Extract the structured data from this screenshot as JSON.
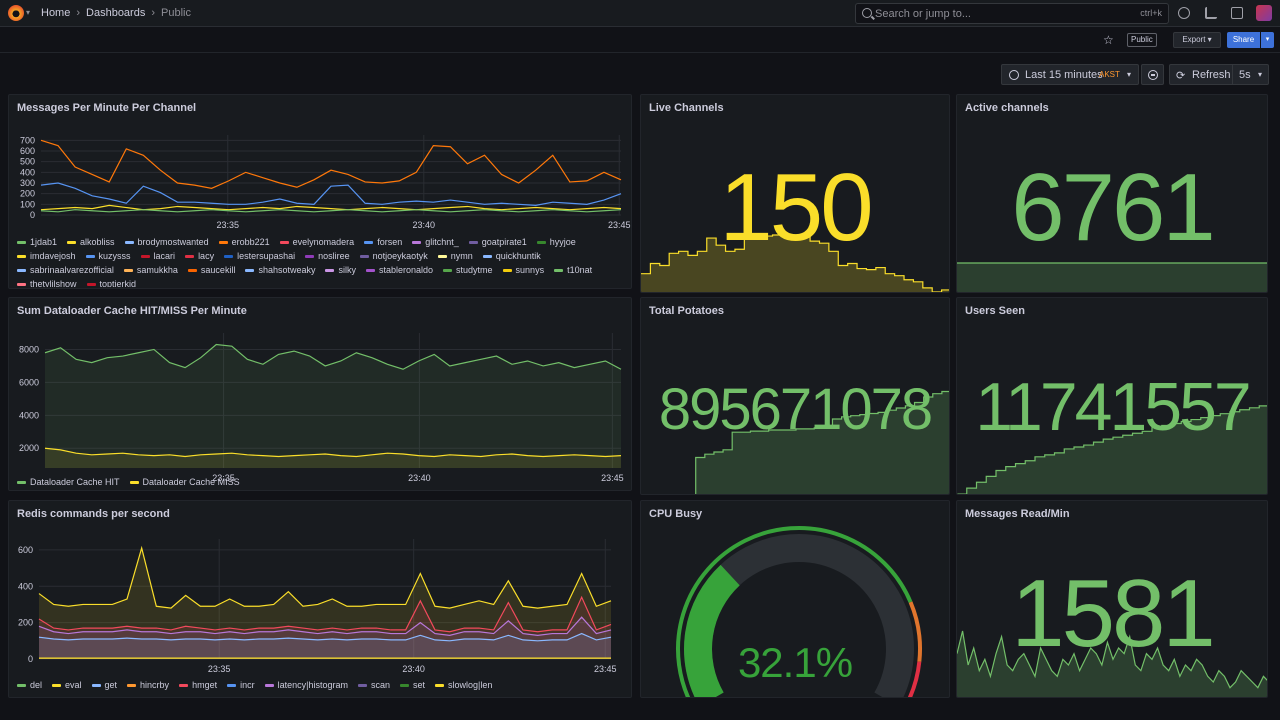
{
  "topbar": {
    "breadcrumbs": [
      "Home",
      "Dashboards",
      "Public"
    ],
    "search_placeholder": "Search or jump to...",
    "search_shortcut": "ctrl+k",
    "icons": [
      "grafana-logo",
      "help-icon",
      "news-icon",
      "kiosk-icon",
      "avatar"
    ]
  },
  "actions": {
    "star_icon": "star-icon",
    "public_tag": "Public",
    "export_label": "Export",
    "share_label": "Share"
  },
  "time": {
    "range_label": "Last 15 minutes",
    "timezone": "AKST",
    "refresh_label": "Refresh",
    "refresh_interval": "5s"
  },
  "colors": {
    "background": "#111217",
    "panel": "#181b1f",
    "green": "#73bf69",
    "yellow": "#fade2a",
    "blue": "#3d71d9",
    "orange": "#ff9830",
    "red": "#f2495c"
  },
  "panels": {
    "messages": {
      "title": "Messages Per Minute Per Channel",
      "legend": [
        {
          "name": "1jdab1",
          "color": "#73bf69"
        },
        {
          "name": "alkobliss",
          "color": "#fade2a"
        },
        {
          "name": "brodymostwanted",
          "color": "#8ab8ff"
        },
        {
          "name": "erobb221",
          "color": "#ff780a"
        },
        {
          "name": "evelynomadera",
          "color": "#f2495c"
        },
        {
          "name": "forsen",
          "color": "#5794f2"
        },
        {
          "name": "glitchnt_",
          "color": "#b877d9"
        },
        {
          "name": "goatpirate1",
          "color": "#705da0"
        },
        {
          "name": "hyyjoe",
          "color": "#37872d"
        },
        {
          "name": "imdavejosh",
          "color": "#fade2a"
        },
        {
          "name": "kuzysss",
          "color": "#5794f2"
        },
        {
          "name": "lacari",
          "color": "#c4162a"
        },
        {
          "name": "lacy",
          "color": "#e02f44"
        },
        {
          "name": "lestersupashai",
          "color": "#1f60c4"
        },
        {
          "name": "nosliree",
          "color": "#8f3bb8"
        },
        {
          "name": "notjoeykaotyk",
          "color": "#705da0"
        },
        {
          "name": "nymn",
          "color": "#fff899"
        },
        {
          "name": "quickhuntik",
          "color": "#8ab8ff"
        },
        {
          "name": "sabrinaalvarezofficial",
          "color": "#8ab8ff"
        },
        {
          "name": "samukkha",
          "color": "#ffb357"
        },
        {
          "name": "saucekill",
          "color": "#fa6400"
        },
        {
          "name": "shahsotweaky",
          "color": "#8ab8ff"
        },
        {
          "name": "silky",
          "color": "#ca95e5"
        },
        {
          "name": "stableronaldo",
          "color": "#a352cc"
        },
        {
          "name": "studytme",
          "color": "#56a64b"
        },
        {
          "name": "sunnys",
          "color": "#f2cc0c"
        },
        {
          "name": "t10nat",
          "color": "#73bf69"
        },
        {
          "name": "thetylilshow",
          "color": "#ff7383"
        },
        {
          "name": "toptierkid",
          "color": "#c4162a"
        }
      ]
    },
    "dataloader": {
      "title": "Sum Dataloader Cache HIT/MISS Per Minute",
      "legend": [
        {
          "name": "Dataloader Cache HIT",
          "color": "#73bf69"
        },
        {
          "name": "Dataloader Cache MISS",
          "color": "#fade2a"
        }
      ]
    },
    "redis": {
      "title": "Redis commands per second",
      "legend": [
        {
          "name": "del",
          "color": "#73bf69"
        },
        {
          "name": "eval",
          "color": "#fade2a"
        },
        {
          "name": "get",
          "color": "#8ab8ff"
        },
        {
          "name": "hincrby",
          "color": "#ff9830"
        },
        {
          "name": "hmget",
          "color": "#f2495c"
        },
        {
          "name": "incr",
          "color": "#5794f2"
        },
        {
          "name": "latency|histogram",
          "color": "#b877d9"
        },
        {
          "name": "scan",
          "color": "#705da0"
        },
        {
          "name": "set",
          "color": "#37872d"
        },
        {
          "name": "slowlog|len",
          "color": "#fade2a"
        }
      ]
    },
    "live_channels": {
      "title": "Live Channels",
      "value": "150",
      "color": "#fade2a"
    },
    "active_channels": {
      "title": "Active channels",
      "value": "6761",
      "color": "#73bf69"
    },
    "total_potatoes": {
      "title": "Total Potatoes",
      "value": "895671078",
      "color": "#73bf69"
    },
    "users_seen": {
      "title": "Users Seen",
      "value": "11741557",
      "color": "#73bf69"
    },
    "cpu_busy": {
      "title": "CPU Busy",
      "value": "32.1%",
      "percent": 32.1,
      "color": "#37a33a"
    },
    "messages_read": {
      "title": "Messages Read/Min",
      "value": "1581",
      "color": "#73bf69"
    }
  },
  "chart_data": [
    {
      "type": "line",
      "title": "Messages Per Minute Per Channel",
      "x_ticks": [
        "23:35",
        "23:40",
        "23:45"
      ],
      "y_ticks": [
        0,
        100,
        200,
        300,
        400,
        500,
        600,
        700
      ],
      "ylim": [
        0,
        750
      ],
      "series": [
        {
          "name": "erobb221",
          "values": [
            700,
            650,
            450,
            380,
            310,
            620,
            560,
            420,
            300,
            280,
            250,
            320,
            400,
            350,
            300,
            260,
            330,
            420,
            380,
            310,
            300,
            320,
            400,
            650,
            640,
            480,
            560,
            380,
            300,
            420,
            560,
            310,
            320,
            400,
            330
          ]
        },
        {
          "name": "forsen",
          "values": [
            280,
            300,
            250,
            180,
            150,
            110,
            270,
            210,
            120,
            120,
            110,
            100,
            100,
            120,
            150,
            110,
            100,
            270,
            280,
            110,
            100,
            120,
            130,
            120,
            140,
            120,
            100,
            110,
            100,
            90,
            120,
            110,
            100,
            140,
            200
          ]
        },
        {
          "name": "alkobliss",
          "values": [
            50,
            60,
            70,
            60,
            90,
            70,
            50,
            60,
            80,
            70,
            60,
            50,
            60,
            70,
            60,
            80,
            70,
            60,
            50,
            60,
            70,
            60,
            50,
            60,
            70,
            80,
            60,
            50,
            60,
            70,
            60,
            50,
            60,
            70,
            60
          ]
        },
        {
          "name": "1jdab1",
          "values": [
            40,
            30,
            50,
            40,
            30,
            40,
            50,
            40,
            30,
            40,
            50,
            40,
            30,
            40,
            50,
            40,
            30,
            40,
            50,
            40,
            30,
            40,
            50,
            40,
            30,
            40,
            50,
            40,
            30,
            40,
            50,
            40,
            30,
            40,
            50
          ]
        }
      ]
    },
    {
      "type": "line",
      "title": "Sum Dataloader Cache HIT/MISS Per Minute",
      "x_ticks": [
        "23:35",
        "23:40",
        "23:45"
      ],
      "y_ticks": [
        2000,
        4000,
        6000,
        8000
      ],
      "ylim": [
        800,
        9000
      ],
      "series": [
        {
          "name": "Dataloader Cache HIT",
          "values": [
            7800,
            8100,
            7400,
            7200,
            7500,
            7600,
            7800,
            8000,
            7200,
            6900,
            7500,
            8300,
            8200,
            7400,
            7100,
            7700,
            7900,
            7600,
            7000,
            7300,
            7800,
            7500,
            7100,
            6800,
            7300,
            7700,
            7000,
            7200,
            7400,
            7600,
            7100,
            7300,
            7000,
            7200,
            6900,
            7100,
            7300,
            6800
          ]
        },
        {
          "name": "Dataloader Cache MISS",
          "values": [
            2000,
            1900,
            1700,
            1600,
            1650,
            1700,
            1600,
            1550,
            1600,
            1500,
            1600,
            1650,
            1700,
            1600,
            1550,
            1500,
            1550,
            1600,
            1650,
            1550,
            1500,
            1600,
            1700,
            1650,
            1550,
            1500,
            1600,
            1550,
            1500,
            1600,
            1650,
            1550,
            1500,
            1550,
            1600,
            1550,
            1500,
            1550
          ]
        }
      ]
    },
    {
      "type": "area",
      "title": "Redis commands per second",
      "x_ticks": [
        "23:35",
        "23:40",
        "23:45"
      ],
      "y_ticks": [
        0,
        200,
        400,
        600
      ],
      "ylim": [
        0,
        660
      ],
      "series": [
        {
          "name": "eval",
          "values": [
            360,
            300,
            290,
            300,
            300,
            300,
            330,
            610,
            290,
            280,
            350,
            290,
            290,
            330,
            290,
            290,
            300,
            370,
            290,
            300,
            330,
            290,
            290,
            300,
            300,
            300,
            470,
            290,
            280,
            300,
            320,
            300,
            430,
            290,
            280,
            290,
            300,
            470,
            290,
            320
          ]
        },
        {
          "name": "hmget",
          "values": [
            220,
            170,
            160,
            170,
            170,
            170,
            180,
            170,
            170,
            160,
            180,
            170,
            160,
            170,
            160,
            170,
            170,
            180,
            170,
            160,
            170,
            160,
            170,
            170,
            160,
            160,
            320,
            160,
            150,
            170,
            170,
            160,
            310,
            160,
            150,
            160,
            160,
            340,
            160,
            190
          ]
        },
        {
          "name": "latency|histogram",
          "values": [
            180,
            150,
            140,
            150,
            150,
            150,
            160,
            150,
            150,
            140,
            150,
            150,
            140,
            150,
            140,
            150,
            150,
            160,
            150,
            140,
            150,
            140,
            150,
            150,
            140,
            140,
            200,
            140,
            130,
            150,
            150,
            140,
            210,
            140,
            130,
            140,
            140,
            230,
            140,
            160
          ]
        },
        {
          "name": "get",
          "values": [
            120,
            110,
            105,
            110,
            110,
            110,
            115,
            110,
            110,
            105,
            110,
            110,
            105,
            110,
            105,
            110,
            110,
            115,
            110,
            105,
            110,
            105,
            110,
            110,
            105,
            105,
            130,
            105,
            100,
            110,
            110,
            105,
            130,
            105,
            100,
            105,
            105,
            140,
            105,
            120
          ]
        },
        {
          "name": "slowlog|len",
          "values": [
            5,
            5,
            5,
            5,
            5,
            5,
            5,
            5,
            5,
            5,
            5,
            5,
            5,
            5,
            5,
            5,
            5,
            5,
            5,
            5,
            5,
            5,
            5,
            5,
            5,
            5,
            5,
            5,
            5,
            5,
            5,
            5,
            5,
            5,
            5,
            5,
            5,
            5,
            5,
            5
          ]
        }
      ]
    },
    {
      "type": "area",
      "title": "Live Channels",
      "values": [
        20,
        30,
        28,
        40,
        42,
        38,
        42,
        55,
        48,
        42,
        44,
        58,
        56,
        57,
        58,
        58,
        57,
        58,
        52,
        50,
        42,
        28,
        30,
        25,
        24,
        26,
        20,
        18,
        14,
        12,
        6,
        2,
        4,
        0
      ]
    },
    {
      "type": "area",
      "title": "Active channels",
      "values": [
        30,
        30,
        30,
        30,
        30,
        30,
        30,
        30,
        30,
        30
      ]
    },
    {
      "type": "area",
      "title": "Total Potatoes",
      "values": [
        0,
        0,
        0,
        0,
        0,
        0,
        35,
        38,
        40,
        42,
        58,
        58,
        59,
        59,
        60,
        60,
        60,
        61,
        61,
        62,
        62,
        70,
        72,
        73,
        74,
        75,
        76,
        78,
        80,
        82,
        85,
        90,
        93,
        95,
        100
      ]
    },
    {
      "type": "area",
      "title": "Users Seen",
      "values": [
        2,
        8,
        14,
        20,
        26,
        30,
        33,
        36,
        40,
        42,
        44,
        48,
        50,
        52,
        55,
        58,
        60,
        62,
        64,
        66,
        70,
        72,
        74,
        76,
        78,
        80,
        82,
        84,
        86,
        88,
        90,
        92,
        93
      ]
    },
    {
      "type": "area",
      "title": "Messages Read/Min",
      "values": [
        40,
        60,
        30,
        45,
        25,
        35,
        20,
        40,
        55,
        30,
        25,
        35,
        40,
        30,
        20,
        45,
        35,
        25,
        20,
        35,
        30,
        40,
        25,
        35,
        45,
        40,
        30,
        50,
        35,
        45,
        40,
        55,
        30,
        25,
        40,
        35,
        45,
        30,
        25,
        35,
        20,
        30,
        25,
        35,
        30,
        20,
        15,
        25,
        20,
        10,
        15,
        25,
        20,
        15,
        10,
        20,
        15
      ]
    }
  ]
}
